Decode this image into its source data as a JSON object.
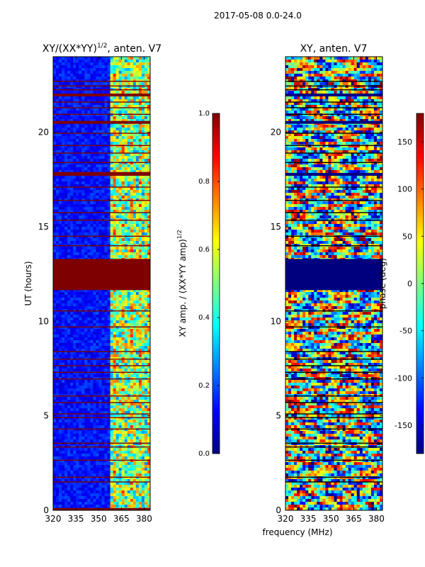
{
  "figure": {
    "suptitle": "2017-05-08 0.0-24.0",
    "xlabel_shared": "frequency (MHz)"
  },
  "colors": {
    "jet": [
      "#00007f",
      "#0000ff",
      "#007fff",
      "#00ffff",
      "#7fff7f",
      "#ffff00",
      "#ff7f00",
      "#ff0000",
      "#7f0000"
    ],
    "flag_red": "#7f0000",
    "flag_blue": "#00007f"
  },
  "chart_data": [
    {
      "type": "heatmap",
      "panel": "amplitude",
      "title": "XY/(XX*YY)",
      "title_exp": "1/2",
      "title_suffix": ", anten. V7",
      "xlabel": "",
      "ylabel": "UT (hours)",
      "xlim": [
        320,
        384
      ],
      "ylim": [
        0,
        24
      ],
      "xticks": [
        "320",
        "335",
        "350",
        "365",
        "380"
      ],
      "xtick_values": [
        320,
        335,
        350,
        365,
        380
      ],
      "yticks": [
        "0",
        "5",
        "10",
        "15",
        "20"
      ],
      "ytick_values": [
        0,
        5,
        10,
        15,
        20
      ],
      "colorbar": {
        "label": "XY amp. / (XX*YY amp)",
        "label_exp": "1/2",
        "range": [
          0,
          1
        ],
        "ticks": [
          "0.0",
          "0.2",
          "0.4",
          "0.6",
          "0.8",
          "1.0"
        ],
        "tick_values": [
          0,
          0.2,
          0.4,
          0.6,
          0.8,
          1.0
        ]
      },
      "flagged_blocks_hours": [
        [
          11.65,
          13.3
        ],
        [
          17.7,
          17.9
        ],
        [
          20.45,
          20.6
        ],
        [
          21.9,
          22.05
        ],
        [
          0,
          0.12
        ]
      ],
      "flag_lines_hours": [
        1.5,
        1.75,
        2.65,
        3.35,
        3.55,
        4.3,
        4.9,
        5.1,
        5.7,
        6.05,
        6.95,
        7.3,
        7.65,
        8.0,
        8.4,
        9.7,
        10.55,
        14.0,
        14.5,
        15.35,
        15.75,
        16.4,
        17.1,
        18.4,
        18.9,
        19.3,
        19.95,
        20.95,
        21.3,
        21.6,
        22.25,
        22.45,
        22.7
      ],
      "bright_band_mhz": [
        358,
        384
      ]
    },
    {
      "type": "heatmap",
      "panel": "phase",
      "title": "XY, anten. V7",
      "xlabel": "frequency (MHz)",
      "xlim": [
        320,
        384
      ],
      "ylim": [
        0,
        24
      ],
      "xticks": [
        "320",
        "335",
        "350",
        "365",
        "380"
      ],
      "xtick_values": [
        320,
        335,
        350,
        365,
        380
      ],
      "yticks": [
        "0",
        "5",
        "10",
        "15",
        "20"
      ],
      "ytick_values": [
        0,
        5,
        10,
        15,
        20
      ],
      "colorbar": {
        "label": "phase (deg)",
        "range": [
          -180,
          180
        ],
        "ticks": [
          "-150",
          "-100",
          "-50",
          "0",
          "50",
          "100",
          "150"
        ],
        "tick_values": [
          -150,
          -100,
          -50,
          0,
          50,
          100,
          150
        ]
      },
      "flagged_blocks_hours": [
        [
          11.65,
          13.3
        ],
        [
          17.7,
          17.85
        ],
        [
          20.45,
          20.6
        ],
        [
          21.9,
          22.05
        ]
      ],
      "flag_lines_hours": [
        1.5,
        1.75,
        2.65,
        3.35,
        3.55,
        4.3,
        4.9,
        5.1,
        5.7,
        6.05,
        6.95,
        7.3,
        7.65,
        8.0,
        8.4,
        9.7,
        10.55,
        14.0,
        14.5,
        15.35,
        15.75,
        16.4,
        17.1,
        18.4,
        18.9,
        19.3,
        19.95,
        20.95,
        21.3,
        21.6,
        22.25,
        22.45,
        22.7
      ]
    }
  ]
}
